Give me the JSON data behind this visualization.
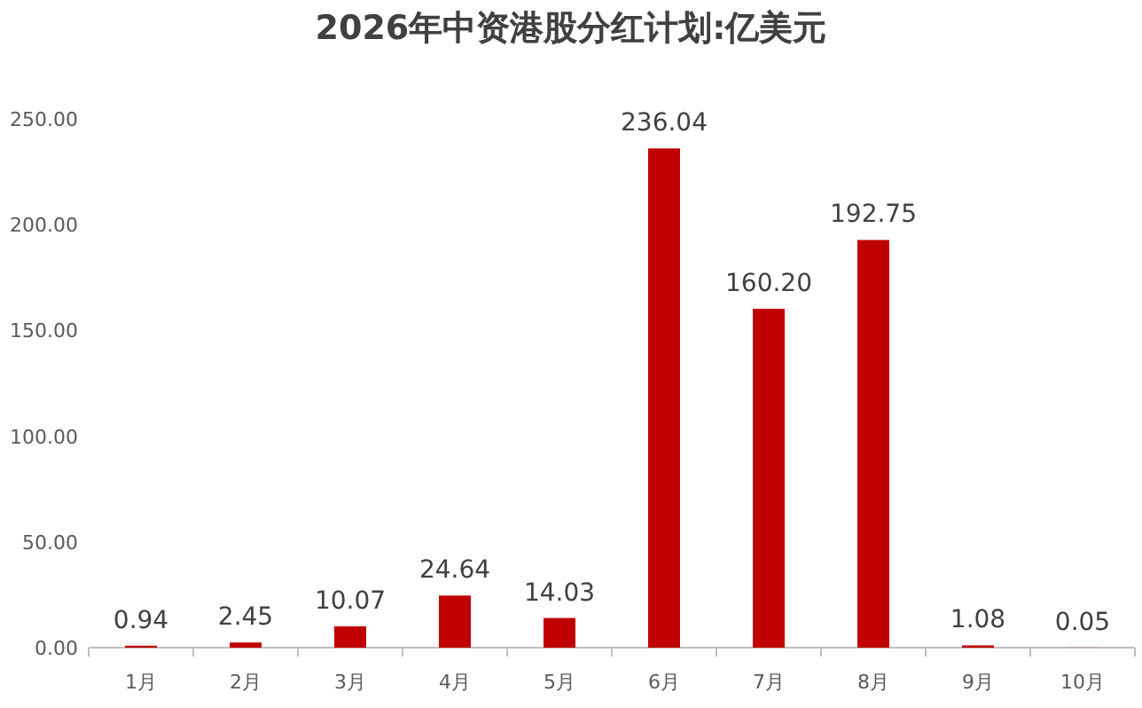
{
  "chart_data": {
    "type": "bar",
    "title": "2026年中资港股分红计划:亿美元",
    "categories": [
      "1月",
      "2月",
      "3月",
      "4月",
      "5月",
      "6月",
      "7月",
      "8月",
      "9月",
      "10月"
    ],
    "values": [
      0.94,
      2.45,
      10.07,
      24.64,
      14.03,
      236.04,
      160.2,
      192.75,
      1.08,
      0.05
    ],
    "value_labels": [
      "0.94",
      "2.45",
      "10.07",
      "24.64",
      "14.03",
      "236.04",
      "160.20",
      "192.75",
      "1.08",
      "0.05"
    ],
    "color": "#c00000",
    "ylim": [
      0,
      250
    ],
    "yticks": [
      {
        "value": 0,
        "label": "0.00"
      },
      {
        "value": 50,
        "label": "50.00"
      },
      {
        "value": 100,
        "label": "100.00"
      },
      {
        "value": 150,
        "label": "150.00"
      },
      {
        "value": 200,
        "label": "200.00"
      },
      {
        "value": 250,
        "label": "250.00"
      }
    ],
    "grid": false
  }
}
